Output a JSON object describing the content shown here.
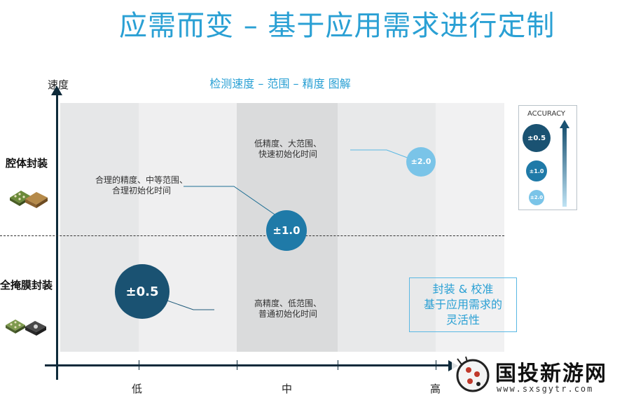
{
  "title": "应需而变 – 基于应用需求进行定制",
  "subtitle": "检测速度 – 范围 – 精度 图解",
  "y_axis_label": "速度",
  "x_axis_labels": [
    "低",
    "中",
    "高"
  ],
  "rows": {
    "top": "腔体封装",
    "bottom": "全掩膜封装"
  },
  "notes": {
    "top_left": [
      "合理的精度、中等范围、",
      "合理初始化时间"
    ],
    "top_mid": [
      "低精度、大范围、",
      "快速初始化时间"
    ],
    "bottom_mid": [
      "高精度、低范围、",
      "普通初始化时间"
    ]
  },
  "bubbles": {
    "b05": "±0.5",
    "b10": "±1.0",
    "b20": "±2.0"
  },
  "legend": {
    "title": "ACCURACY",
    "items": [
      "±0.5",
      "±1.0",
      "±2.0"
    ]
  },
  "promo": [
    "封装 & 校准",
    "基于应用需求的",
    "灵活性"
  ],
  "watermark": {
    "brand": "国投新游网",
    "url": "www.sxsgytr.com"
  },
  "colors": {
    "accent": "#2aa0d4",
    "dark_bubble": "#1a5272",
    "mid_bubble": "#1f7aa8",
    "light_bubble": "#7ac4e8"
  }
}
